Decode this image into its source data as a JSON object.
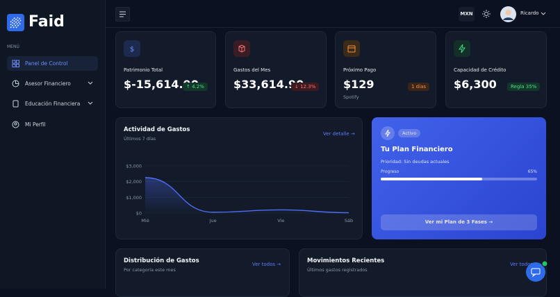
{
  "sidebar": {
    "brand": "Faid",
    "menu_label": "MENÚ",
    "nav": [
      "Panel de Control",
      "Asesor Financiero",
      "Educación Financiera",
      "Mi Perfil"
    ]
  },
  "topbar": {
    "currency": "MXN",
    "user": "Ricardo"
  },
  "stats": [
    {
      "label": "Patrimonio Total",
      "value": "$-15,614.90",
      "badge": "↑ 4.2%"
    },
    {
      "label": "Gastos del Mes",
      "value": "$33,614.90",
      "badge": "↓ 12.3%"
    },
    {
      "label": "Próximo Pago",
      "value": "$129",
      "note": "Spotify",
      "badge": "1 días"
    },
    {
      "label": "Capacidad de Crédito",
      "value": "$6,300",
      "badge": "Regla 35%"
    }
  ],
  "activity": {
    "title": "Actividad de Gastos",
    "subtitle": "Últimos 7 días",
    "link": "Ver detalle →",
    "chart": {
      "type": "line",
      "categories": [
        "Mié",
        "Jue",
        "Vie",
        "Sáb"
      ],
      "values": [
        2250,
        50,
        200,
        20
      ],
      "color": "#4f6ef7",
      "ylim": [
        0,
        3000
      ],
      "yticks": [
        {
          "value": 0,
          "label": "$0"
        },
        {
          "value": 1000,
          "label": "$1,000"
        },
        {
          "value": 2000,
          "label": "$2,000"
        },
        {
          "value": 3000,
          "label": "$3,000"
        }
      ],
      "grid": true
    }
  },
  "plan": {
    "status": "Activo",
    "title": "Tu Plan Financiero",
    "priority": "Prioridad: Sin deudas actuales",
    "progress": {
      "label": "Progreso",
      "value": 65,
      "value_label": "65%"
    },
    "button": "Ver mi Plan de 3 Fases →"
  },
  "distribution": {
    "title": "Distribución de Gastos",
    "subtitle": "Por categoría este mes",
    "link": "Ver todos →"
  },
  "movements": {
    "title": "Movimientos Recientes",
    "subtitle": "Últimos gastos registrados",
    "link": "Ver todos →"
  }
}
